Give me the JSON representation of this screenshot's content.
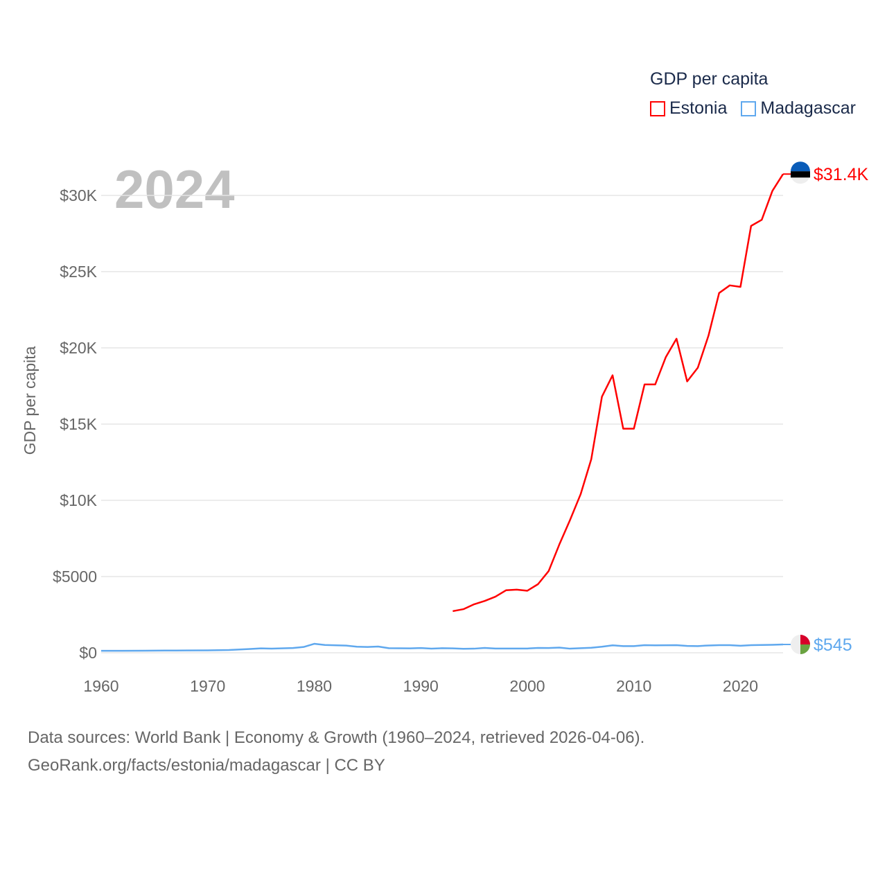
{
  "chart_data": {
    "type": "line",
    "title": "GDP per capita",
    "year_label": "2024",
    "ylabel": "GDP per capita",
    "xlabel": "",
    "xlim": [
      1960,
      2024
    ],
    "ylim": [
      0,
      30000
    ],
    "x_ticks": [
      "1960",
      "1970",
      "1980",
      "1990",
      "2000",
      "2010",
      "2020"
    ],
    "x_tick_values": [
      1960,
      1970,
      1980,
      1990,
      2000,
      2010,
      2020
    ],
    "y_ticks": [
      "$0",
      "$5000",
      "$10K",
      "$15K",
      "$20K",
      "$25K",
      "$30K"
    ],
    "y_tick_values": [
      0,
      5000,
      10000,
      15000,
      20000,
      25000,
      30000
    ],
    "grid": true,
    "legend_position": "top-right",
    "series": [
      {
        "name": "Estonia",
        "color": "#ff0000",
        "end_label": "$31.4K",
        "x": [
          1993,
          1994,
          1995,
          1996,
          1997,
          1998,
          1999,
          2000,
          2001,
          2002,
          2003,
          2004,
          2005,
          2006,
          2007,
          2008,
          2009,
          2010,
          2011,
          2012,
          2013,
          2014,
          2015,
          2016,
          2017,
          2018,
          2019,
          2020,
          2021,
          2022,
          2023,
          2024
        ],
        "values": [
          2730,
          2860,
          3180,
          3400,
          3680,
          4100,
          4140,
          4070,
          4500,
          5360,
          7100,
          8700,
          10400,
          12700,
          16800,
          18200,
          14700,
          14700,
          17600,
          17600,
          19400,
          20600,
          17800,
          18700,
          20800,
          23600,
          24100,
          24000,
          28000,
          28400,
          30300,
          31400
        ]
      },
      {
        "name": "Madagascar",
        "color": "#5fa8ee",
        "end_label": "$545",
        "x": [
          1960,
          1962,
          1964,
          1966,
          1968,
          1970,
          1972,
          1974,
          1975,
          1976,
          1978,
          1979,
          1980,
          1981,
          1983,
          1984,
          1985,
          1986,
          1987,
          1989,
          1990,
          1991,
          1992,
          1993,
          1994,
          1995,
          1996,
          1997,
          1998,
          2000,
          2001,
          2002,
          2003,
          2004,
          2005,
          2006,
          2007,
          2008,
          2009,
          2010,
          2011,
          2012,
          2014,
          2015,
          2016,
          2017,
          2018,
          2019,
          2020,
          2021,
          2022,
          2023,
          2024
        ],
        "values": [
          130,
          130,
          135,
          145,
          155,
          160,
          180,
          250,
          290,
          270,
          310,
          380,
          590,
          510,
          470,
          400,
          380,
          410,
          300,
          290,
          310,
          270,
          300,
          290,
          260,
          270,
          320,
          280,
          280,
          280,
          320,
          310,
          340,
          270,
          300,
          330,
          400,
          490,
          440,
          440,
          500,
          490,
          500,
          450,
          440,
          480,
          500,
          500,
          460,
          500,
          510,
          520,
          545
        ]
      }
    ]
  },
  "legend": {
    "title": "GDP per capita",
    "items": [
      "Estonia",
      "Madagascar"
    ]
  },
  "footer": {
    "line1": "Data sources: World Bank | Economy & Growth (1960–2024, retrieved 2026-04-06).",
    "line2": "GeoRank.org/facts/estonia/madagascar | CC BY"
  }
}
